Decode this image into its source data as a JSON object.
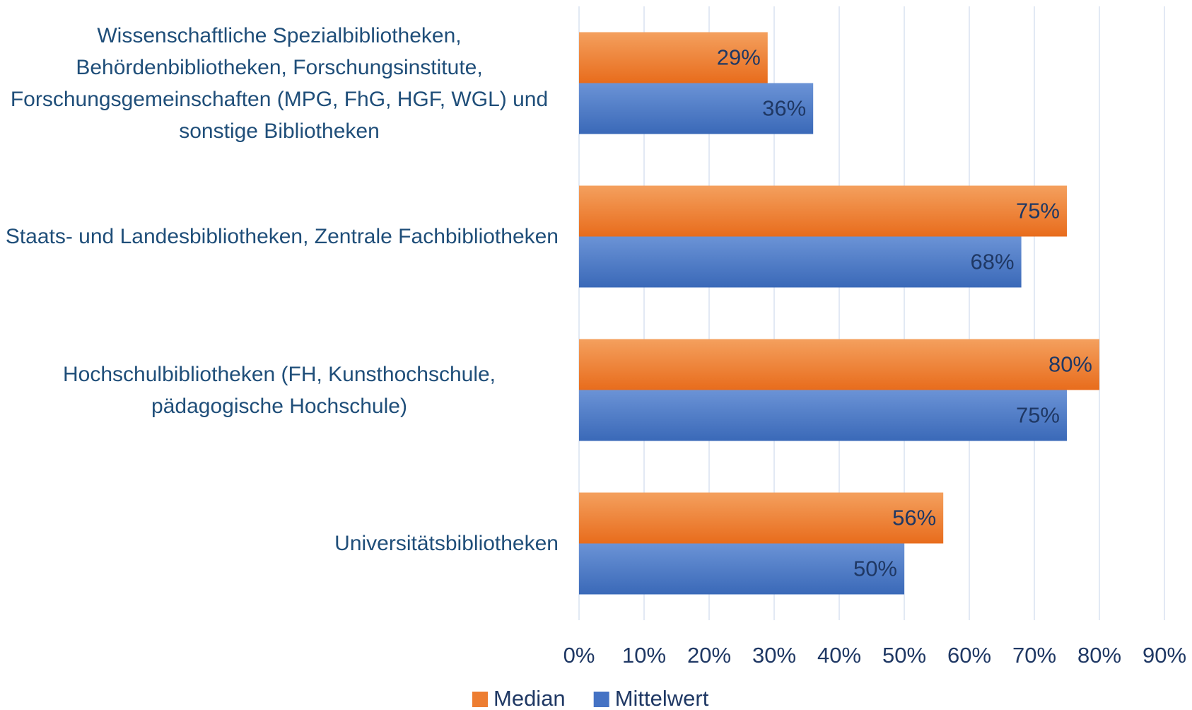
{
  "chart_data": {
    "type": "bar",
    "orientation": "horizontal",
    "categories": [
      "Wissenschaftliche Spezialbibliotheken, Behördenbibliotheken, Forschungsinstitute, Forschungsgemeinschaften (MPG, FhG, HGF, WGL) und sonstige Bibliotheken",
      "Staats- und Landesbibliotheken, Zentrale Fachbibliotheken",
      "Hochschulbibliotheken (FH, Kunsthochschule, pädagogische Hochschule)",
      "Universitätsbibliotheken"
    ],
    "series": [
      {
        "name": "Median",
        "color": "#ed7d31",
        "values": [
          29,
          75,
          80,
          56
        ],
        "value_labels": [
          "29%",
          "75%",
          "80%",
          "56%"
        ]
      },
      {
        "name": "Mittelwert",
        "color": "#4472c4",
        "values": [
          36,
          68,
          75,
          50
        ],
        "value_labels": [
          "36%",
          "68%",
          "75%",
          "50%"
        ]
      }
    ],
    "xlim": [
      0,
      90
    ],
    "xticks": [
      {
        "value": 0,
        "label": "0%"
      },
      {
        "value": 10,
        "label": "10%"
      },
      {
        "value": 20,
        "label": "20%"
      },
      {
        "value": 30,
        "label": "30%"
      },
      {
        "value": 40,
        "label": "40%"
      },
      {
        "value": 50,
        "label": "50%"
      },
      {
        "value": 60,
        "label": "60%"
      },
      {
        "value": 70,
        "label": "70%"
      },
      {
        "value": 80,
        "label": "80%"
      },
      {
        "value": 90,
        "label": "90%"
      }
    ],
    "grid": true,
    "legend": "bottom"
  }
}
